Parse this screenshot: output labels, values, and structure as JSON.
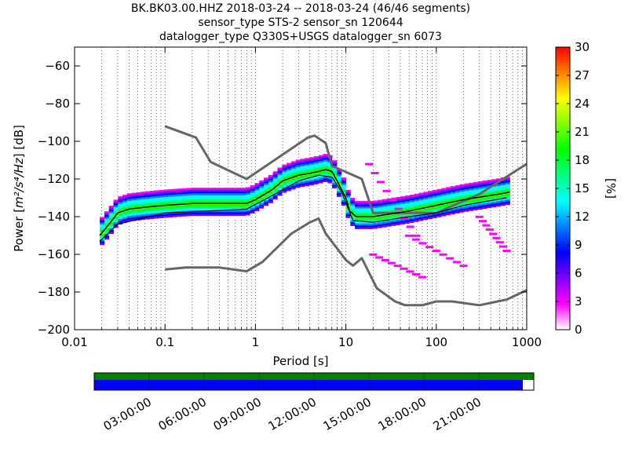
{
  "title_lines": [
    "BK.BK03.00.HHZ   2018-03-24 -- 2018-03-24  (46/46 segments)",
    "sensor_type STS-2 sensor_sn 120644",
    "datalogger_type Q330S+USGS datalogger_sn 6073"
  ],
  "chart_data": {
    "type": "heatmap",
    "subtype": "probabilistic power spectral density",
    "xlabel": "Period [s]",
    "ylabel_prefix": "Power [",
    "ylabel_units": "m²/s⁴/Hz",
    "ylabel_suffix": "] [dB]",
    "x_scale": "log",
    "xlim": [
      0.01,
      1000
    ],
    "ylim": [
      -200,
      -50
    ],
    "x_ticks": [
      {
        "value": 0.01,
        "label": "0.01"
      },
      {
        "value": 0.1,
        "label": "0.1"
      },
      {
        "value": 1,
        "label": "1"
      },
      {
        "value": 10,
        "label": "10"
      },
      {
        "value": 100,
        "label": "100"
      },
      {
        "value": 1000,
        "label": "1000"
      }
    ],
    "y_ticks": [
      {
        "value": -60,
        "label": "−60"
      },
      {
        "value": -80,
        "label": "−80"
      },
      {
        "value": -100,
        "label": "−100"
      },
      {
        "value": -120,
        "label": "−120"
      },
      {
        "value": -140,
        "label": "−140"
      },
      {
        "value": -160,
        "label": "−160"
      },
      {
        "value": -180,
        "label": "−180"
      },
      {
        "value": -200,
        "label": "−200"
      }
    ],
    "grid": "dotted vertical",
    "noise_models": [
      {
        "name": "NHNM",
        "color": "#666666",
        "points": [
          [
            0.1,
            -92
          ],
          [
            0.22,
            -98
          ],
          [
            0.32,
            -111
          ],
          [
            0.8,
            -120
          ],
          [
            3.8,
            -98
          ],
          [
            4.5,
            -97
          ],
          [
            6.0,
            -101
          ],
          [
            7.0,
            -113
          ],
          [
            15,
            -120
          ],
          [
            20,
            -138
          ],
          [
            100,
            -138
          ],
          [
            300,
            -128
          ],
          [
            1000,
            -112
          ]
        ]
      },
      {
        "name": "NLNM",
        "color": "#666666",
        "points": [
          [
            0.1,
            -168
          ],
          [
            0.17,
            -167
          ],
          [
            0.4,
            -167
          ],
          [
            0.8,
            -169
          ],
          [
            1.2,
            -164
          ],
          [
            2.5,
            -149
          ],
          [
            4.0,
            -143
          ],
          [
            5.0,
            -141
          ],
          [
            6.0,
            -149
          ],
          [
            10,
            -163
          ],
          [
            12,
            -166
          ],
          [
            15,
            -162
          ],
          [
            22,
            -178
          ],
          [
            35,
            -185
          ],
          [
            45,
            -187
          ],
          [
            70,
            -187
          ],
          [
            100,
            -185
          ],
          [
            150,
            -185
          ],
          [
            300,
            -187
          ],
          [
            600,
            -184
          ],
          [
            1000,
            -179
          ]
        ]
      }
    ],
    "mean_curve": {
      "color": "#000000",
      "points": [
        [
          0.019,
          -150
        ],
        [
          0.025,
          -143
        ],
        [
          0.03,
          -138
        ],
        [
          0.04,
          -136
        ],
        [
          0.06,
          -135
        ],
        [
          0.1,
          -134
        ],
        [
          0.2,
          -133
        ],
        [
          0.4,
          -133
        ],
        [
          0.8,
          -133
        ],
        [
          1.0,
          -131
        ],
        [
          1.5,
          -126
        ],
        [
          2.0,
          -121
        ],
        [
          3.0,
          -118
        ],
        [
          4.0,
          -117
        ],
        [
          5.0,
          -116
        ],
        [
          6.0,
          -115
        ],
        [
          7.0,
          -116
        ],
        [
          8.0,
          -121
        ],
        [
          10,
          -130
        ],
        [
          11,
          -137
        ],
        [
          13,
          -140
        ],
        [
          20,
          -140
        ],
        [
          50,
          -137
        ],
        [
          100,
          -134
        ],
        [
          200,
          -131
        ],
        [
          500,
          -128
        ],
        [
          650,
          -127
        ]
      ]
    },
    "min_curve": {
      "color": "#000000",
      "points": [
        [
          0.019,
          -153
        ],
        [
          0.03,
          -144
        ],
        [
          0.1,
          -138
        ],
        [
          0.3,
          -137
        ],
        [
          0.8,
          -136
        ],
        [
          1.5,
          -129
        ],
        [
          3.0,
          -121
        ],
        [
          5.0,
          -118
        ],
        [
          7.0,
          -119
        ],
        [
          9.0,
          -127
        ],
        [
          12,
          -142
        ],
        [
          20,
          -143
        ],
        [
          50,
          -140
        ],
        [
          100,
          -138
        ],
        [
          200,
          -134
        ],
        [
          600,
          -130
        ]
      ]
    },
    "psd_band": {
      "points": [
        [
          0.019,
          -150
        ],
        [
          0.025,
          -143
        ],
        [
          0.03,
          -138
        ],
        [
          0.04,
          -136
        ],
        [
          0.06,
          -135
        ],
        [
          0.1,
          -134
        ],
        [
          0.2,
          -133
        ],
        [
          0.4,
          -133
        ],
        [
          0.8,
          -133
        ],
        [
          1.0,
          -131
        ],
        [
          1.5,
          -126
        ],
        [
          2.0,
          -121
        ],
        [
          3.0,
          -118
        ],
        [
          4.0,
          -117
        ],
        [
          5.0,
          -116
        ],
        [
          6.0,
          -115
        ],
        [
          7.0,
          -116
        ],
        [
          8.0,
          -121
        ],
        [
          10,
          -130
        ],
        [
          11,
          -137
        ],
        [
          13,
          -140
        ],
        [
          20,
          -140
        ],
        [
          50,
          -137
        ],
        [
          100,
          -134
        ],
        [
          200,
          -131
        ],
        [
          500,
          -128
        ],
        [
          650,
          -127
        ]
      ],
      "upper_spread_db": 9,
      "lower_spread_db": 7
    },
    "outlier_clusters": [
      {
        "period_range": [
          18,
          60
        ],
        "db_range": [
          -112,
          -150
        ],
        "probability_pct": 1
      },
      {
        "period_range": [
          20,
          70
        ],
        "db_range": [
          -160,
          -172
        ],
        "probability_pct": 1
      },
      {
        "period_range": [
          50,
          200
        ],
        "db_range": [
          -150,
          -166
        ],
        "probability_pct": 1
      },
      {
        "period_range": [
          300,
          600
        ],
        "db_range": [
          -140,
          -158
        ],
        "probability_pct": 1
      }
    ],
    "colorbar": {
      "label": "[%]",
      "range": [
        0,
        30
      ],
      "ticks": [
        "0",
        "3",
        "6",
        "9",
        "12",
        "15",
        "18",
        "21",
        "24",
        "27",
        "30"
      ],
      "colors": [
        "#ffffff",
        "#ff00ff",
        "#8000ff",
        "#0000ff",
        "#0080ff",
        "#00ffff",
        "#00ff80",
        "#00ff00",
        "#80ff00",
        "#ffff00",
        "#ff8000",
        "#ff0000"
      ]
    }
  },
  "coverage": {
    "data_color": "#0000ff",
    "segment_color": "#008000",
    "data_fraction": 0.975,
    "time_ticks": [
      "03:00:00",
      "06:00:00",
      "09:00:00",
      "12:00:00",
      "15:00:00",
      "18:00:00",
      "21:00:00"
    ]
  }
}
